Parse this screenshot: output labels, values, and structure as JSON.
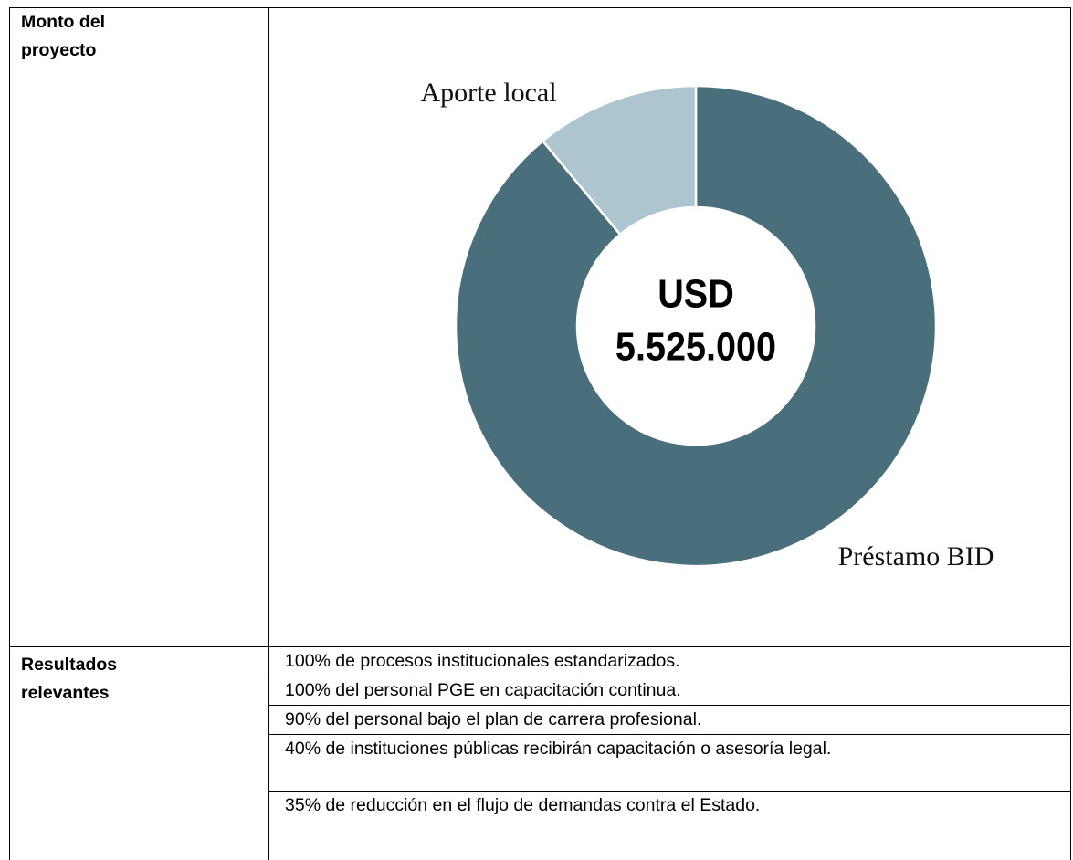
{
  "rows": [
    {
      "label": "Monto del proyecto"
    },
    {
      "label": "Resultados relevantes",
      "items": [
        "100% de procesos institucionales estandarizados.",
        "100% del personal PGE en capacitación continua.",
        "90% del personal bajo el plan de carrera profesional.",
        "40% de instituciones públicas recibirán capacitación o asesoría legal.",
        "35% de reducción en el flujo de demandas contra el Estado."
      ]
    }
  ],
  "chart_data": {
    "type": "donut",
    "categories": [
      "Préstamo BID",
      "Aporte local"
    ],
    "values": [
      89,
      11
    ],
    "colors": [
      "#4a6f7c",
      "#adc5cf"
    ],
    "center_lines": [
      "USD",
      "5.525.000"
    ]
  }
}
